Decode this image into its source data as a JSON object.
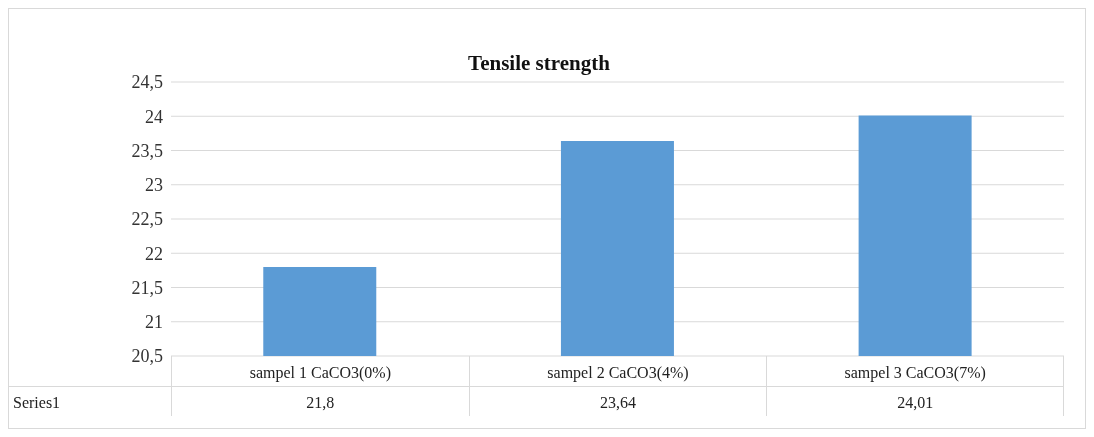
{
  "chart_data": {
    "type": "bar",
    "title": "Tensile strength",
    "categories": [
      "sampel 1 CaCO3(0%)",
      "sampel 2  CaCO3(4%)",
      "sampel 3  CaCO3(7%)"
    ],
    "series": [
      {
        "name": "Series1",
        "color": "#5b9bd5",
        "values": [
          21.8,
          23.64,
          24.01
        ],
        "value_labels": [
          "21,8",
          "23,64",
          "24,01"
        ]
      }
    ],
    "ylim": [
      20.5,
      24.5
    ],
    "yticks": [
      {
        "value": 20.5,
        "label": "20,5"
      },
      {
        "value": 21,
        "label": "21"
      },
      {
        "value": 21.5,
        "label": "21,5"
      },
      {
        "value": 22,
        "label": "22"
      },
      {
        "value": 22.5,
        "label": "22,5"
      },
      {
        "value": 23,
        "label": "23"
      },
      {
        "value": 23.5,
        "label": "23,5"
      },
      {
        "value": 24,
        "label": "24"
      },
      {
        "value": 24.5,
        "label": "24,5"
      }
    ],
    "grid": "y"
  }
}
